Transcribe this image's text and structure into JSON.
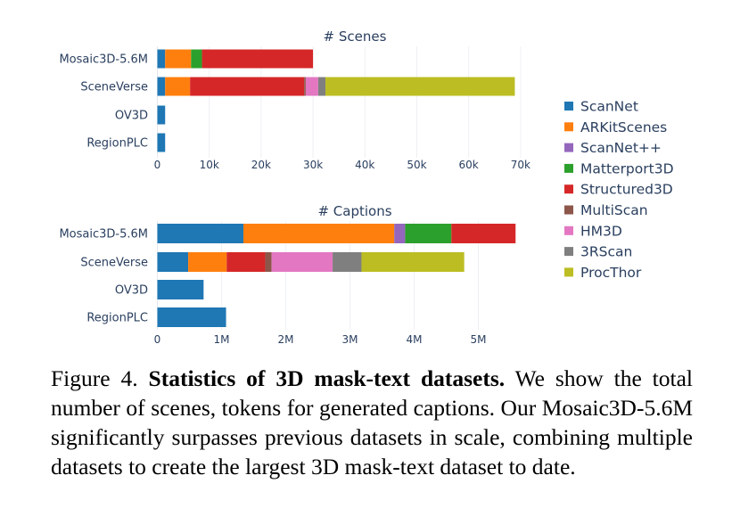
{
  "legend": [
    {
      "name": "ScanNet",
      "color": "#1f77b4"
    },
    {
      "name": "ARKitScenes",
      "color": "#ff7f0e"
    },
    {
      "name": "ScanNet++",
      "color": "#9467bd"
    },
    {
      "name": "Matterport3D",
      "color": "#2ca02c"
    },
    {
      "name": "Structured3D",
      "color": "#d62728"
    },
    {
      "name": "MultiScan",
      "color": "#8c564b"
    },
    {
      "name": "HM3D",
      "color": "#e377c2"
    },
    {
      "name": "3RScan",
      "color": "#7f7f7f"
    },
    {
      "name": "ProcThor",
      "color": "#bcbd22"
    }
  ],
  "chart_data": [
    {
      "type": "bar",
      "orientation": "horizontal",
      "stacked": true,
      "title": "# Scenes",
      "categories": [
        "Mosaic3D-5.6M",
        "SceneVerse",
        "OV3D",
        "RegionPLC"
      ],
      "xlim": [
        0,
        72000
      ],
      "xticks": [
        0,
        10000,
        20000,
        30000,
        40000,
        50000,
        60000,
        70000
      ],
      "xtick_labels": [
        "0",
        "10k",
        "20k",
        "30k",
        "40k",
        "50k",
        "60k",
        "70k"
      ],
      "grid": true,
      "series": [
        {
          "name": "ScanNet",
          "values": [
            1500,
            1500,
            1500,
            1500
          ]
        },
        {
          "name": "ARKitScenes",
          "values": [
            5000,
            4800,
            0,
            0
          ]
        },
        {
          "name": "ScanNet++",
          "values": [
            0,
            0,
            0,
            0
          ]
        },
        {
          "name": "Matterport3D",
          "values": [
            2100,
            0,
            0,
            0
          ]
        },
        {
          "name": "Structured3D",
          "values": [
            21400,
            22000,
            0,
            0
          ]
        },
        {
          "name": "MultiScan",
          "values": [
            0,
            300,
            0,
            0
          ]
        },
        {
          "name": "HM3D",
          "values": [
            0,
            2400,
            0,
            0
          ]
        },
        {
          "name": "3RScan",
          "values": [
            0,
            1400,
            0,
            0
          ]
        },
        {
          "name": "ProcThor",
          "values": [
            0,
            36500,
            0,
            0
          ]
        }
      ]
    },
    {
      "type": "bar",
      "orientation": "horizontal",
      "stacked": true,
      "title": "# Captions",
      "categories": [
        "Mosaic3D-5.6M",
        "SceneVerse",
        "OV3D",
        "RegionPLC"
      ],
      "xlim": [
        0,
        5800000
      ],
      "xticks": [
        0,
        1000000,
        2000000,
        3000000,
        4000000,
        5000000
      ],
      "xtick_labels": [
        "0",
        "1M",
        "2M",
        "3M",
        "4M",
        "5M"
      ],
      "grid": true,
      "series": [
        {
          "name": "ScanNet",
          "values": [
            1340000,
            480000,
            720000,
            1070000
          ]
        },
        {
          "name": "ARKitScenes",
          "values": [
            2350000,
            600000,
            0,
            0
          ]
        },
        {
          "name": "ScanNet++",
          "values": [
            170000,
            0,
            0,
            0
          ]
        },
        {
          "name": "Matterport3D",
          "values": [
            720000,
            0,
            0,
            0
          ]
        },
        {
          "name": "Structured3D",
          "values": [
            1000000,
            600000,
            0,
            0
          ]
        },
        {
          "name": "MultiScan",
          "values": [
            0,
            100000,
            0,
            0
          ]
        },
        {
          "name": "HM3D",
          "values": [
            0,
            950000,
            0,
            0
          ]
        },
        {
          "name": "3RScan",
          "values": [
            0,
            450000,
            0,
            0
          ]
        },
        {
          "name": "ProcThor",
          "values": [
            0,
            1600000,
            0,
            0
          ]
        }
      ]
    }
  ],
  "caption": {
    "label": "Figure 4.",
    "bold": "Statistics of 3D mask-text datasets.",
    "text": "We show the total number of scenes, tokens for generated captions. Our Mosaic3D-5.6M significantly surpasses previous datasets in scale, combining multiple datasets to create the largest 3D mask-text dataset to date."
  }
}
